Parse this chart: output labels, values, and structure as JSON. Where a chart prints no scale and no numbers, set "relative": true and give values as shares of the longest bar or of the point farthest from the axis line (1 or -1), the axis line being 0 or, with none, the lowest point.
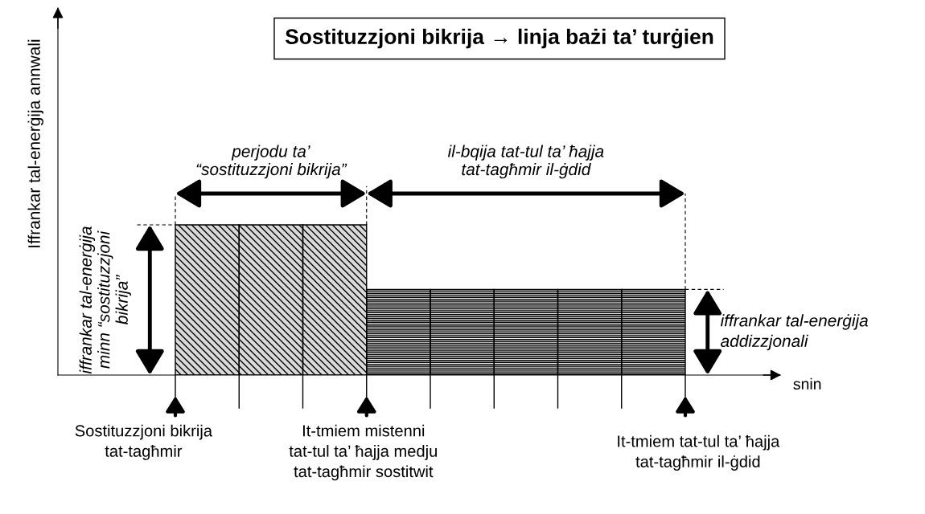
{
  "chart_data": {
    "type": "bar",
    "relative": true,
    "title": "Sostituzzjoni bikrija → linja bażi ta’ turġien",
    "categories": [
      null,
      null,
      null,
      null,
      null,
      null,
      null,
      null
    ],
    "values": [
      1,
      1,
      1,
      0.57,
      0.57,
      0.57,
      0.57,
      0.57
    ],
    "colors": [
      "#d9d9d9",
      "#d9d9d9",
      "#d9d9d9",
      "#ededed",
      "#ededed",
      "#ededed",
      "#ededed",
      "#ededed"
    ],
    "annotations": [
      "perjodu ta’\n“sostituzzjoni bikrija”",
      "il-bqija tat-tul ta’ ħajja\ntat-tagħmir il-ġdid",
      "iffrankar tal-enerġija\nminn “sostituzzjoni\nbikrija”",
      "iffrankar tal-enerġija\naddizzjonali",
      "Sostituzzjoni bikrija\ntat-tagħmir",
      "It-tmiem mistenni\ntat-tul ta’ ħajja medju\ntat-tagħmir sostitwit",
      "It-tmiem tat-tul ta’ ħajja\ntat-tagħmir il-ġdid",
      "snin",
      "Iffrankar tal-enerġija annwali"
    ],
    "grid": false,
    "legend": false
  }
}
